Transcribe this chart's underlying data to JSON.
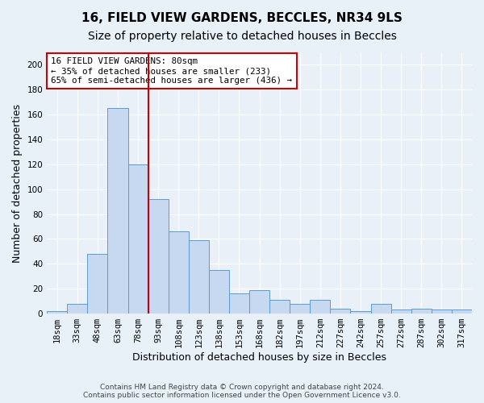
{
  "title1": "16, FIELD VIEW GARDENS, BECCLES, NR34 9LS",
  "title2": "Size of property relative to detached houses in Beccles",
  "xlabel": "Distribution of detached houses by size in Beccles",
  "ylabel": "Number of detached properties",
  "bar_labels": [
    "18sqm",
    "33sqm",
    "48sqm",
    "63sqm",
    "78sqm",
    "93sqm",
    "108sqm",
    "123sqm",
    "138sqm",
    "153sqm",
    "168sqm",
    "182sqm",
    "197sqm",
    "212sqm",
    "227sqm",
    "242sqm",
    "257sqm",
    "272sqm",
    "287sqm",
    "302sqm",
    "317sqm"
  ],
  "bar_values": [
    2,
    8,
    48,
    165,
    120,
    92,
    66,
    59,
    35,
    16,
    19,
    11,
    8,
    11,
    4,
    2,
    8,
    3,
    4,
    3,
    3
  ],
  "bar_color": "#c6d9f0",
  "bar_edge_color": "#5b9bd5",
  "red_line_x": 4.5,
  "annotation_text": "16 FIELD VIEW GARDENS: 80sqm\n← 35% of detached houses are smaller (233)\n65% of semi-detached houses are larger (436) →",
  "annotation_box_color": "#ffffff",
  "annotation_box_edge": "#cc0000",
  "ylim": [
    0,
    210
  ],
  "yticks": [
    0,
    20,
    40,
    60,
    80,
    100,
    120,
    140,
    160,
    180,
    200
  ],
  "footer1": "Contains HM Land Registry data © Crown copyright and database right 2024.",
  "footer2": "Contains public sector information licensed under the Open Government Licence v3.0.",
  "bg_color": "#e8f0f8",
  "plot_bg_color": "#eaf0f8",
  "grid_color": "#ffffff",
  "title1_fontsize": 11,
  "title2_fontsize": 10,
  "tick_fontsize": 7.5,
  "ylabel_fontsize": 9,
  "xlabel_fontsize": 9
}
